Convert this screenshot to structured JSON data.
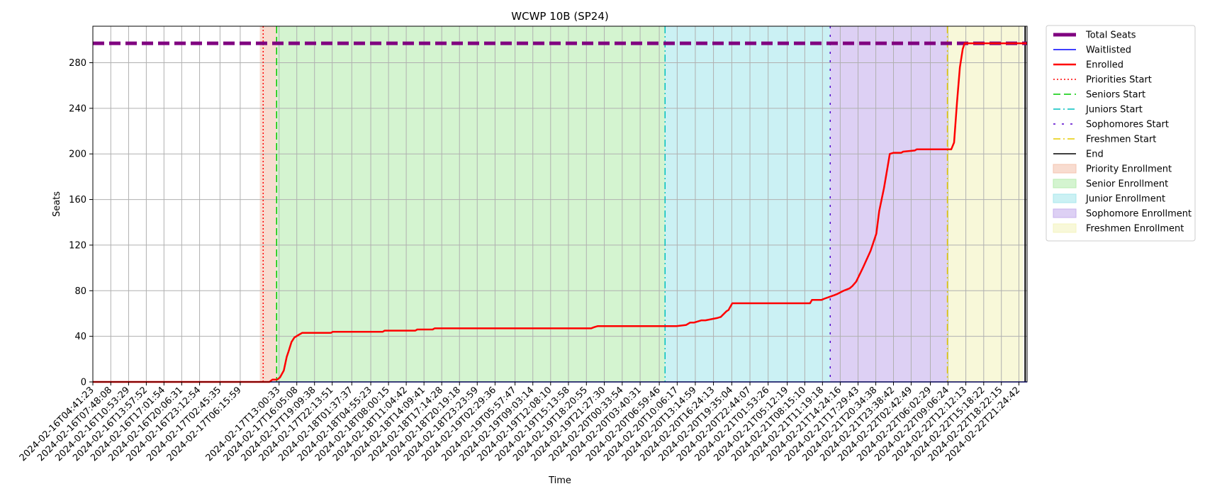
{
  "chart_data": {
    "type": "line",
    "title": "WCWP 10B (SP24)",
    "xlabel": "Time",
    "ylabel": "Seats",
    "ylim": [
      0,
      312
    ],
    "yticks": [
      0,
      40,
      80,
      120,
      160,
      200,
      240,
      280
    ],
    "xlim": [
      "2024-02-16T04:41:23",
      "2024-02-22T22:50:00"
    ],
    "grid": true,
    "legend_position": "outside-right",
    "xticks": [
      "2024-02-16T04:41:23",
      "2024-02-16T07:48:08",
      "2024-02-16T10:53:29",
      "2024-02-16T13:57:52",
      "2024-02-16T17:01:54",
      "2024-02-16T20:06:31",
      "2024-02-16T23:12:54",
      "2024-02-17T02:45:35",
      "2024-02-17T06:15:59",
      "2024-02-17T13:00:33",
      "2024-02-17T16:05:08",
      "2024-02-17T19:09:38",
      "2024-02-17T22:13:51",
      "2024-02-18T01:37:37",
      "2024-02-18T04:55:23",
      "2024-02-18T08:00:15",
      "2024-02-18T11:04:42",
      "2024-02-18T14:09:41",
      "2024-02-18T17:14:28",
      "2024-02-18T20:19:18",
      "2024-02-18T23:23:59",
      "2024-02-19T02:29:36",
      "2024-02-19T05:57:47",
      "2024-02-19T09:03:14",
      "2024-02-19T12:08:10",
      "2024-02-19T15:13:58",
      "2024-02-19T18:20:55",
      "2024-02-19T21:27:30",
      "2024-02-20T00:33:54",
      "2024-02-20T03:40:31",
      "2024-02-20T06:59:46",
      "2024-02-20T10:06:17",
      "2024-02-20T13:14:59",
      "2024-02-20T16:24:13",
      "2024-02-20T19:35:04",
      "2024-02-20T22:44:07",
      "2024-02-21T01:53:26",
      "2024-02-21T05:12:19",
      "2024-02-21T08:15:10",
      "2024-02-21T11:19:18",
      "2024-02-21T14:24:16",
      "2024-02-21T17:29:43",
      "2024-02-21T20:34:38",
      "2024-02-21T23:38:42",
      "2024-02-22T02:42:49",
      "2024-02-22T06:02:29",
      "2024-02-22T09:06:24",
      "2024-02-22T12:12:13",
      "2024-02-22T15:18:22",
      "2024-02-22T18:22:15",
      "2024-02-22T21:24:42"
    ],
    "series": [
      {
        "name": "Total Seats",
        "style": "dashed",
        "color": "#800080",
        "x": [
          "2024-02-16T04:41:23",
          "2024-02-22T22:50:00"
        ],
        "y": [
          297,
          297
        ]
      },
      {
        "name": "Waitlisted",
        "style": "solid",
        "color": "#0000ff",
        "x": [
          "2024-02-16T04:41:23",
          "2024-02-22T22:50:00"
        ],
        "y": [
          0,
          0
        ]
      },
      {
        "name": "Enrolled",
        "style": "solid",
        "color": "#ff0000",
        "x": [
          "2024-02-16T04:41:23",
          "2024-02-17T11:20:00",
          "2024-02-17T11:50:00",
          "2024-02-17T12:40:00",
          "2024-02-17T13:10:00",
          "2024-02-17T13:50:00",
          "2024-02-17T14:20:00",
          "2024-02-17T14:40:00",
          "2024-02-17T15:10:00",
          "2024-02-17T15:40:00",
          "2024-02-17T16:20:00",
          "2024-02-17T17:00:00",
          "2024-02-17T22:00:00",
          "2024-02-17T22:20:00",
          "2024-02-18T07:00:00",
          "2024-02-18T07:20:00",
          "2024-02-18T12:40:00",
          "2024-02-18T13:00:00",
          "2024-02-18T15:40:00",
          "2024-02-18T16:00:00",
          "2024-02-19T19:10:00",
          "2024-02-19T19:40:00",
          "2024-02-19T20:20:00",
          "2024-02-20T10:00:00",
          "2024-02-20T11:40:00",
          "2024-02-20T12:20:00",
          "2024-02-20T13:00:00",
          "2024-02-20T14:20:00",
          "2024-02-20T15:00:00",
          "2024-02-20T17:00:00",
          "2024-02-20T17:40:00",
          "2024-02-20T18:40:00",
          "2024-02-20T19:00:00",
          "2024-02-20T19:40:00",
          "2024-02-20T20:20:00",
          "2024-02-20T21:00:00",
          "2024-02-21T09:10:00",
          "2024-02-21T09:30:00",
          "2024-02-21T10:20:00",
          "2024-02-21T11:10:00",
          "2024-02-21T11:40:00",
          "2024-02-21T13:20:00",
          "2024-02-21T13:50:00",
          "2024-02-21T15:00:00",
          "2024-02-21T16:00:00",
          "2024-02-21T16:30:00",
          "2024-02-21T17:10:00",
          "2024-02-21T18:20:00",
          "2024-02-21T19:40:00",
          "2024-02-21T20:40:00",
          "2024-02-21T21:10:00",
          "2024-02-21T22:00:00",
          "2024-02-21T22:40:00",
          "2024-02-21T23:00:00",
          "2024-02-21T23:40:00",
          "2024-02-22T01:00:00",
          "2024-02-22T01:20:00",
          "2024-02-22T03:20:00",
          "2024-02-22T03:40:00",
          "2024-02-22T09:40:00",
          "2024-02-22T10:10:00",
          "2024-02-22T10:40:00",
          "2024-02-22T11:10:00",
          "2024-02-22T11:40:00",
          "2024-02-22T12:00:00",
          "2024-02-22T12:20:00",
          "2024-02-22T22:50:00"
        ],
        "y": [
          0,
          0,
          2,
          2,
          4,
          10,
          22,
          27,
          35,
          39,
          41,
          43,
          43,
          44,
          44,
          45,
          45,
          46,
          46,
          47,
          47,
          48,
          49,
          49,
          50,
          52,
          52,
          54,
          54,
          56,
          57,
          62,
          63,
          69,
          69,
          69,
          69,
          72,
          72,
          72,
          73,
          76,
          77,
          80,
          82,
          84,
          88,
          100,
          115,
          130,
          150,
          170,
          190,
          200,
          201,
          201,
          202,
          203,
          204,
          204,
          210,
          245,
          276,
          292,
          297,
          297,
          297
        ]
      }
    ],
    "events": [
      {
        "name": "Priorities Start",
        "style": "dotted",
        "color": "#ff0000",
        "x": "2024-02-17T10:15:00"
      },
      {
        "name": "Seniors Start",
        "style": "dashed",
        "color": "#00cc00",
        "x": "2024-02-17T12:35:00"
      },
      {
        "name": "Juniors Start",
        "style": "dashdot",
        "color": "#00bfbf",
        "x": "2024-02-20T08:00:00"
      },
      {
        "name": "Sophomores Start",
        "style": "loosedash",
        "color": "#5500cc",
        "x": "2024-02-21T12:40:00"
      },
      {
        "name": "Freshmen Start",
        "style": "dashdot",
        "color": "#e6cc00",
        "x": "2024-02-22T09:00:00"
      },
      {
        "name": "End",
        "style": "solid",
        "color": "#000000",
        "x": "2024-02-22T22:30:00"
      }
    ],
    "regions": [
      {
        "name": "Priority Enrollment",
        "color": "#f4c4b0",
        "start": "2024-02-17T09:40:00",
        "end": "2024-02-17T12:35:00"
      },
      {
        "name": "Senior Enrollment",
        "color": "#b8ecb0",
        "start": "2024-02-17T12:35:00",
        "end": "2024-02-20T08:00:00"
      },
      {
        "name": "Junior Enrollment",
        "color": "#a8e8ec",
        "start": "2024-02-20T08:00:00",
        "end": "2024-02-21T12:40:00"
      },
      {
        "name": "Sophomore Enrollment",
        "color": "#c7b0ec",
        "start": "2024-02-21T12:40:00",
        "end": "2024-02-22T09:00:00"
      },
      {
        "name": "Freshmen Enrollment",
        "color": "#f4f4c0",
        "start": "2024-02-22T09:00:00",
        "end": "2024-02-22T22:10:00"
      }
    ]
  }
}
